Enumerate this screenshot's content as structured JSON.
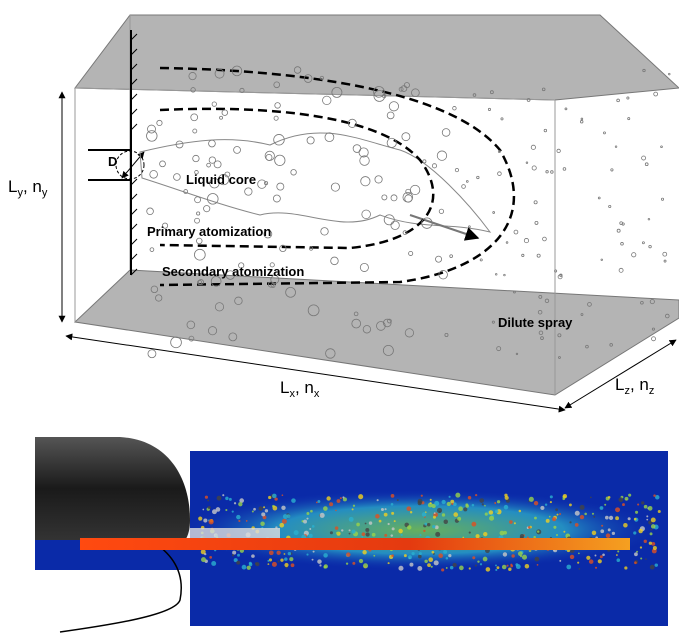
{
  "labels": {
    "diameter": "D",
    "liquid_core": "Liquid core",
    "primary": "Primary atomization",
    "secondary": "Secondary atomization",
    "dilute": "Dilute spray"
  },
  "axes": {
    "y": [
      "L",
      "y",
      ", n",
      "y"
    ],
    "x": [
      "L",
      "x",
      ", n",
      "x"
    ],
    "z": [
      "L",
      "z",
      ", n",
      "z"
    ]
  }
}
